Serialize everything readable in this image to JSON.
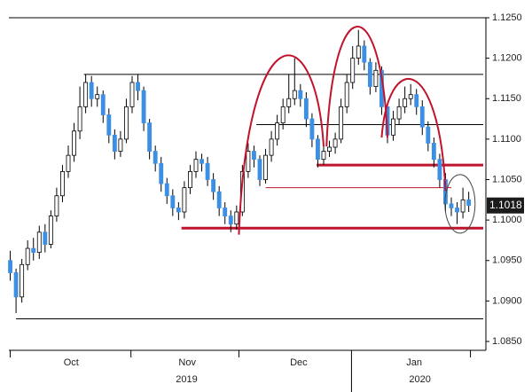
{
  "chart_data": {
    "type": "candlestick",
    "open": [
      1.095,
      1.0935,
      1.0905,
      1.0945,
      1.0965,
      1.096,
      1.0985,
      1.097,
      1.1005,
      1.103,
      1.106,
      1.108,
      1.111,
      1.114,
      1.117,
      1.115,
      1.1155,
      1.113,
      1.1105,
      1.1085,
      1.11,
      1.114,
      1.117,
      1.116,
      1.112,
      1.1085,
      1.107,
      1.1045,
      1.103,
      1.1015,
      1.101,
      1.104,
      1.106,
      1.1075,
      1.107,
      1.105,
      1.1035,
      1.1015,
      1.1005,
      1.0995,
      1.101,
      1.106,
      1.1085,
      1.1075,
      1.105,
      1.108,
      1.11,
      1.112,
      1.114,
      1.115,
      1.116,
      1.115,
      1.1125,
      1.11,
      1.1075,
      1.1085,
      1.109,
      1.11,
      1.114,
      1.117,
      1.12,
      1.1215,
      1.1195,
      1.1165,
      1.1185,
      1.114,
      1.1105,
      1.1125,
      1.114,
      1.115,
      1.1155,
      1.114,
      1.1115,
      1.1095,
      1.1075,
      1.105,
      1.102,
      1.1015,
      1.101,
      1.1025
    ],
    "high": [
      1.0962,
      1.094,
      1.0952,
      1.0975,
      1.0978,
      1.0993,
      1.0995,
      1.1012,
      1.104,
      1.1068,
      1.1092,
      1.112,
      1.1165,
      1.118,
      1.1178,
      1.1165,
      1.116,
      1.1138,
      1.1112,
      1.111,
      1.115,
      1.1178,
      1.118,
      1.1165,
      1.1125,
      1.1092,
      1.1078,
      1.1052,
      1.1038,
      1.1022,
      1.1048,
      1.1068,
      1.1085,
      1.1082,
      1.1078,
      1.1058,
      1.1042,
      1.1022,
      1.1012,
      1.1018,
      1.1068,
      1.1095,
      1.1092,
      1.108,
      1.1088,
      1.111,
      1.113,
      1.115,
      1.118,
      1.12,
      1.1168,
      1.1158,
      1.1132,
      1.1105,
      1.1092,
      1.1098,
      1.1108,
      1.115,
      1.118,
      1.1215,
      1.1235,
      1.1222,
      1.12,
      1.1195,
      1.119,
      1.1145,
      1.1135,
      1.115,
      1.1165,
      1.1168,
      1.1162,
      1.1148,
      1.1122,
      1.1102,
      1.1082,
      1.1058,
      1.1028,
      1.1022,
      1.104,
      1.1035
    ],
    "low": [
      1.0925,
      1.0885,
      1.0898,
      1.0938,
      1.095,
      1.0952,
      1.096,
      1.0965,
      1.0998,
      1.1022,
      1.1052,
      1.1072,
      1.11,
      1.1132,
      1.114,
      1.114,
      1.112,
      1.1095,
      1.1075,
      1.1078,
      1.1095,
      1.1132,
      1.1148,
      1.111,
      1.1075,
      1.106,
      1.1035,
      1.102,
      1.1005,
      1.1,
      1.1002,
      1.1032,
      1.1052,
      1.106,
      1.1042,
      1.1025,
      1.1005,
      1.0995,
      1.0985,
      1.0988,
      1.1005,
      1.1052,
      1.1065,
      1.1042,
      1.1045,
      1.1072,
      1.1092,
      1.1112,
      1.1132,
      1.1142,
      1.114,
      1.1115,
      1.109,
      1.1065,
      1.1068,
      1.1078,
      1.1082,
      1.1095,
      1.1132,
      1.1162,
      1.1192,
      1.1185,
      1.1155,
      1.1158,
      1.113,
      1.1095,
      1.1098,
      1.1118,
      1.1132,
      1.1142,
      1.113,
      1.1105,
      1.1085,
      1.1065,
      1.104,
      1.101,
      1.1005,
      1.0995,
      1.1002,
      1.101
    ],
    "close": [
      1.0935,
      1.0905,
      1.0945,
      1.0965,
      1.096,
      1.0985,
      1.097,
      1.1005,
      1.103,
      1.106,
      1.108,
      1.111,
      1.114,
      1.117,
      1.115,
      1.1155,
      1.113,
      1.1105,
      1.1085,
      1.11,
      1.114,
      1.117,
      1.116,
      1.112,
      1.1085,
      1.107,
      1.1045,
      1.103,
      1.1015,
      1.101,
      1.104,
      1.106,
      1.1075,
      1.107,
      1.105,
      1.1035,
      1.1015,
      1.1005,
      1.0995,
      1.101,
      1.106,
      1.1085,
      1.1075,
      1.105,
      1.108,
      1.11,
      1.112,
      1.114,
      1.115,
      1.116,
      1.115,
      1.1125,
      1.11,
      1.1075,
      1.1085,
      1.109,
      1.11,
      1.114,
      1.117,
      1.12,
      1.1215,
      1.1195,
      1.1165,
      1.1185,
      1.114,
      1.1105,
      1.1125,
      1.114,
      1.115,
      1.1155,
      1.114,
      1.1115,
      1.1095,
      1.1075,
      1.105,
      1.102,
      1.1015,
      1.101,
      1.1025,
      1.1018
    ],
    "up_color": "#ffffff",
    "down_color": "#3d8fe3",
    "xlim": [
      -1,
      81.5
    ],
    "ylim": [
      1.085,
      1.125
    ],
    "yticks": [
      {
        "value": 1.085,
        "label": "1.0850"
      },
      {
        "value": 1.09,
        "label": "1.0900"
      },
      {
        "value": 1.095,
        "label": "1.0950"
      },
      {
        "value": 1.1,
        "label": "1.1000"
      },
      {
        "value": 1.105,
        "label": "1.1050"
      },
      {
        "value": 1.11,
        "label": "1.1100"
      },
      {
        "value": 1.115,
        "label": "1.1150"
      },
      {
        "value": 1.12,
        "label": "1.1200"
      },
      {
        "value": 1.125,
        "label": "1.1250"
      }
    ],
    "month_labels": [
      {
        "value": 10.5,
        "label": "Oct"
      },
      {
        "value": 30.5,
        "label": "Nov"
      },
      {
        "value": 49.7,
        "label": "Dec"
      },
      {
        "value": 69.6,
        "label": "Jan"
      }
    ],
    "month_separators": [
      0,
      20.8,
      39.4,
      79.3
    ],
    "year_separator": 58.8,
    "year_labels": [
      {
        "value": 30.4,
        "label": "2019"
      },
      {
        "value": 70.6,
        "label": "2020"
      }
    ],
    "last_price": {
      "value": 1.1018,
      "label": "1.1018"
    },
    "hlines": [
      {
        "y": 1.118,
        "x0": 12.7,
        "color": "#000000",
        "width": 1
      },
      {
        "y": 1.1118,
        "x0": 42.4,
        "color": "#000000",
        "width": 1
      },
      {
        "y": 1.1068,
        "x0": 52.8,
        "color": "#c0142c",
        "width": 3
      },
      {
        "y": 1.104,
        "x0": 44.0,
        "x1": 76.0,
        "color": "#c0142c",
        "width": 1
      },
      {
        "y": 1.099,
        "x0": 29.5,
        "color": "#c0142c",
        "width": 3
      },
      {
        "y": 1.0878,
        "x0": 1.0,
        "color": "#000000",
        "width": 1
      }
    ],
    "arcs": [
      {
        "x": [
          39.4,
          54.0
        ],
        "y": [
          1.0982,
          1.1091
        ],
        "peak": 1.1201
      },
      {
        "x": [
          54.5,
          65.0
        ],
        "y": [
          1.1091,
          1.1102
        ],
        "peak": 1.1239
      },
      {
        "x": [
          64.0,
          75.0
        ],
        "y": [
          1.1102,
          1.1036
        ],
        "peak": 1.1173
      }
    ],
    "arc_color": "#c0142c",
    "circle": {
      "x": 77.5,
      "y": 1.102
    }
  }
}
